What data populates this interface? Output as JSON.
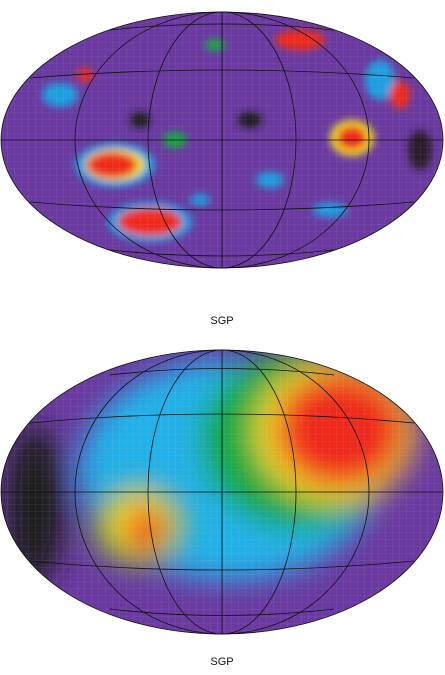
{
  "panels": [
    {
      "label": "SGP"
    },
    {
      "label": "SGP"
    }
  ]
}
